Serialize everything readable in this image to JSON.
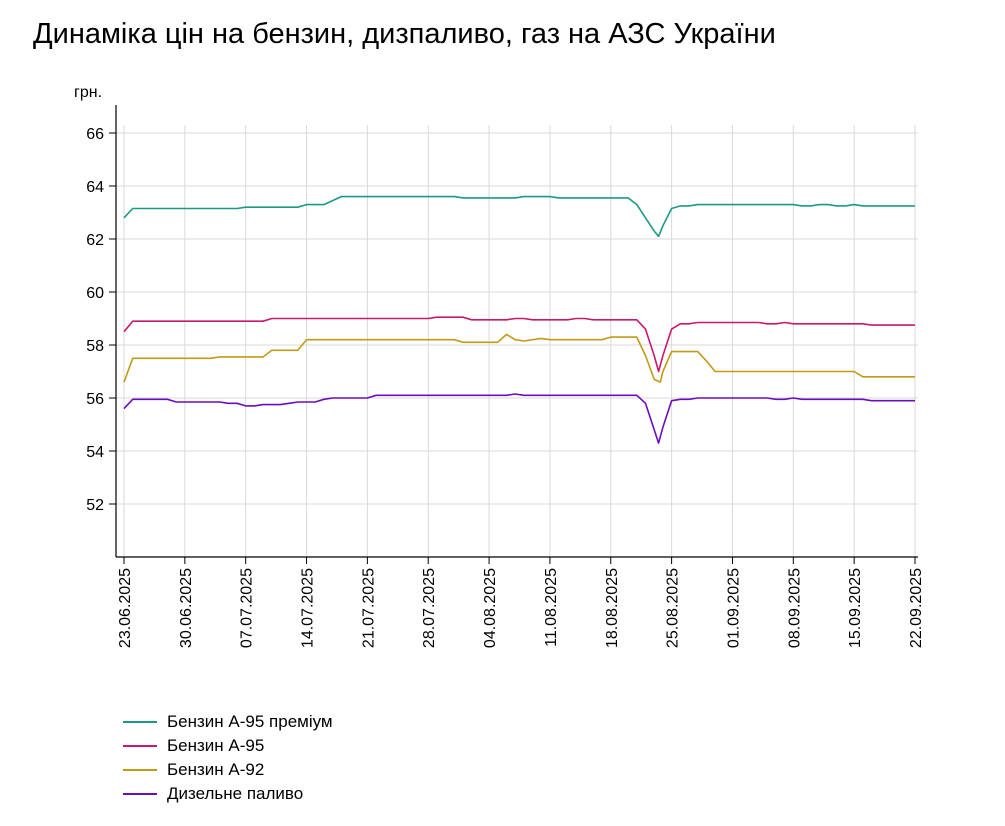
{
  "chart_data": {
    "type": "line",
    "title": "Динаміка цін на бензин, дизпаливо, газ на АЗС України",
    "ylabel": "грн.",
    "xlabel": "",
    "ylim": [
      50.5,
      67
    ],
    "yticks": [
      52,
      54,
      56,
      58,
      60,
      62,
      64,
      66
    ],
    "xlim": [
      "2025-06-22",
      "2025-09-22"
    ],
    "xticks": [
      "23.06.2025",
      "30.06.2025",
      "07.07.2025",
      "14.07.2025",
      "21.07.2025",
      "28.07.2025",
      "04.08.2025",
      "11.08.2025",
      "18.08.2025",
      "25.08.2025",
      "01.09.2025",
      "08.09.2025",
      "15.09.2025",
      "22.09.2025"
    ],
    "grid": true,
    "legend_position": "bottom-left",
    "series": [
      {
        "name": "Бензин А-95 преміум",
        "color": "#1a9a86",
        "points": [
          [
            "2025-06-23",
            62.8
          ],
          [
            "2025-06-24",
            63.15
          ],
          [
            "2025-07-06",
            63.15
          ],
          [
            "2025-07-07",
            63.2
          ],
          [
            "2025-07-13",
            63.2
          ],
          [
            "2025-07-14",
            63.3
          ],
          [
            "2025-07-16",
            63.3
          ],
          [
            "2025-07-18",
            63.6
          ],
          [
            "2025-07-31",
            63.6
          ],
          [
            "2025-08-01",
            63.55
          ],
          [
            "2025-08-07",
            63.55
          ],
          [
            "2025-08-08",
            63.6
          ],
          [
            "2025-08-11",
            63.6
          ],
          [
            "2025-08-12",
            63.55
          ],
          [
            "2025-08-20",
            63.55
          ],
          [
            "2025-08-21",
            63.3
          ],
          [
            "2025-08-22",
            62.8
          ],
          [
            "2025-08-23",
            62.3
          ],
          [
            "2025-08-23.5",
            62.1
          ],
          [
            "2025-08-24",
            62.5
          ],
          [
            "2025-08-25",
            63.15
          ],
          [
            "2025-08-26",
            63.25
          ],
          [
            "2025-08-27",
            63.25
          ],
          [
            "2025-08-28",
            63.3
          ],
          [
            "2025-09-08",
            63.3
          ],
          [
            "2025-09-09",
            63.25
          ],
          [
            "2025-09-10",
            63.25
          ],
          [
            "2025-09-11",
            63.3
          ],
          [
            "2025-09-12",
            63.3
          ],
          [
            "2025-09-13",
            63.25
          ],
          [
            "2025-09-14",
            63.25
          ],
          [
            "2025-09-15",
            63.3
          ],
          [
            "2025-09-16",
            63.25
          ],
          [
            "2025-09-22",
            63.25
          ]
        ]
      },
      {
        "name": "Бензин А-95",
        "color": "#c8196e",
        "points": [
          [
            "2025-06-23",
            58.5
          ],
          [
            "2025-06-24",
            58.9
          ],
          [
            "2025-07-09",
            58.9
          ],
          [
            "2025-07-10",
            59.0
          ],
          [
            "2025-07-28",
            59.0
          ],
          [
            "2025-07-29",
            59.05
          ],
          [
            "2025-08-01",
            59.05
          ],
          [
            "2025-08-02",
            58.95
          ],
          [
            "2025-08-06",
            58.95
          ],
          [
            "2025-08-07",
            59.0
          ],
          [
            "2025-08-08",
            59.0
          ],
          [
            "2025-08-09",
            58.95
          ],
          [
            "2025-08-13",
            58.95
          ],
          [
            "2025-08-14",
            59.0
          ],
          [
            "2025-08-15",
            59.0
          ],
          [
            "2025-08-16",
            58.95
          ],
          [
            "2025-08-21",
            58.95
          ],
          [
            "2025-08-22",
            58.6
          ],
          [
            "2025-08-23",
            57.6
          ],
          [
            "2025-08-23.5",
            57.0
          ],
          [
            "2025-08-24",
            57.6
          ],
          [
            "2025-08-25",
            58.6
          ],
          [
            "2025-08-26",
            58.8
          ],
          [
            "2025-08-27",
            58.8
          ],
          [
            "2025-08-28",
            58.85
          ],
          [
            "2025-09-04",
            58.85
          ],
          [
            "2025-09-05",
            58.8
          ],
          [
            "2025-09-06",
            58.8
          ],
          [
            "2025-09-07",
            58.85
          ],
          [
            "2025-09-08",
            58.8
          ],
          [
            "2025-09-16",
            58.8
          ],
          [
            "2025-09-17",
            58.75
          ],
          [
            "2025-09-22",
            58.75
          ]
        ]
      },
      {
        "name": "Бензин А-92",
        "color": "#c29a18",
        "points": [
          [
            "2025-06-23",
            56.6
          ],
          [
            "2025-06-24",
            57.5
          ],
          [
            "2025-07-03",
            57.5
          ],
          [
            "2025-07-04",
            57.55
          ],
          [
            "2025-07-09",
            57.55
          ],
          [
            "2025-07-10",
            57.8
          ],
          [
            "2025-07-13",
            57.8
          ],
          [
            "2025-07-14",
            58.2
          ],
          [
            "2025-07-31",
            58.2
          ],
          [
            "2025-08-01",
            58.1
          ],
          [
            "2025-08-05",
            58.1
          ],
          [
            "2025-08-06",
            58.4
          ],
          [
            "2025-08-07",
            58.2
          ],
          [
            "2025-08-08",
            58.15
          ],
          [
            "2025-08-10",
            58.25
          ],
          [
            "2025-08-11",
            58.2
          ],
          [
            "2025-08-17",
            58.2
          ],
          [
            "2025-08-18",
            58.3
          ],
          [
            "2025-08-21",
            58.3
          ],
          [
            "2025-08-22",
            57.6
          ],
          [
            "2025-08-23",
            56.7
          ],
          [
            "2025-08-23.7",
            56.6
          ],
          [
            "2025-08-24",
            57.0
          ],
          [
            "2025-08-25",
            57.75
          ],
          [
            "2025-08-28",
            57.75
          ],
          [
            "2025-08-29",
            57.4
          ],
          [
            "2025-08-30",
            57.0
          ],
          [
            "2025-09-15",
            57.0
          ],
          [
            "2025-09-16",
            56.8
          ],
          [
            "2025-09-22",
            56.8
          ]
        ]
      },
      {
        "name": "Дизельне паливо",
        "color": "#6a0dbf",
        "points": [
          [
            "2025-06-23",
            55.6
          ],
          [
            "2025-06-24",
            55.95
          ],
          [
            "2025-06-28",
            55.95
          ],
          [
            "2025-06-29",
            55.85
          ],
          [
            "2025-07-04",
            55.85
          ],
          [
            "2025-07-05",
            55.8
          ],
          [
            "2025-07-06",
            55.8
          ],
          [
            "2025-07-07",
            55.7
          ],
          [
            "2025-07-08",
            55.7
          ],
          [
            "2025-07-09",
            55.75
          ],
          [
            "2025-07-11",
            55.75
          ],
          [
            "2025-07-12",
            55.8
          ],
          [
            "2025-07-13",
            55.85
          ],
          [
            "2025-07-15",
            55.85
          ],
          [
            "2025-07-16",
            55.95
          ],
          [
            "2025-07-17",
            56.0
          ],
          [
            "2025-07-21",
            56.0
          ],
          [
            "2025-07-22",
            56.1
          ],
          [
            "2025-08-06",
            56.1
          ],
          [
            "2025-08-07",
            56.15
          ],
          [
            "2025-08-08",
            56.1
          ],
          [
            "2025-08-21",
            56.1
          ],
          [
            "2025-08-22",
            55.8
          ],
          [
            "2025-08-23",
            54.8
          ],
          [
            "2025-08-23.5",
            54.3
          ],
          [
            "2025-08-24",
            54.9
          ],
          [
            "2025-08-25",
            55.9
          ],
          [
            "2025-08-26",
            55.95
          ],
          [
            "2025-08-27",
            55.95
          ],
          [
            "2025-08-28",
            56.0
          ],
          [
            "2025-09-05",
            56.0
          ],
          [
            "2025-09-06",
            55.95
          ],
          [
            "2025-09-07",
            55.95
          ],
          [
            "2025-09-08",
            56.0
          ],
          [
            "2025-09-09",
            55.95
          ],
          [
            "2025-09-16",
            55.95
          ],
          [
            "2025-09-17",
            55.9
          ],
          [
            "2025-09-22",
            55.9
          ]
        ]
      }
    ]
  }
}
